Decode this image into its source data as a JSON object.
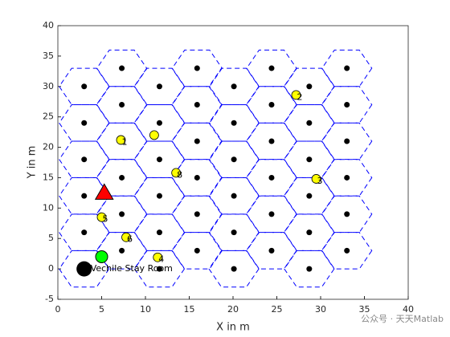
{
  "chart_data": {
    "type": "scatter",
    "xlabel": "X in m",
    "ylabel": "Y in m",
    "xlim": [
      0,
      40
    ],
    "ylim": [
      -5,
      40
    ],
    "xticks": [
      0,
      5,
      10,
      15,
      20,
      25,
      30,
      35,
      40
    ],
    "yticks": [
      -5,
      0,
      5,
      10,
      15,
      20,
      25,
      30,
      35,
      40
    ],
    "cells": {
      "x": [
        3,
        3,
        3,
        3,
        3,
        3,
        7.3,
        7.3,
        7.3,
        7.3,
        7.3,
        7.3,
        11.6,
        11.6,
        11.6,
        11.6,
        11.6,
        11.6,
        15.9,
        15.9,
        15.9,
        15.9,
        15.9,
        15.9,
        20.1,
        20.1,
        20.1,
        20.1,
        20.1,
        20.1,
        24.4,
        24.4,
        24.4,
        24.4,
        24.4,
        24.4,
        28.7,
        28.7,
        28.7,
        28.7,
        28.7,
        28.7,
        33,
        33,
        33,
        33,
        33,
        33
      ],
      "y": [
        30,
        24,
        18,
        12,
        6,
        0,
        33,
        27,
        21,
        15,
        9,
        3,
        30,
        24,
        18,
        12,
        6,
        0,
        33,
        27,
        21,
        15,
        9,
        3,
        30,
        24,
        18,
        12,
        6,
        0,
        33,
        27,
        21,
        15,
        9,
        3,
        30,
        24,
        18,
        12,
        6,
        0,
        33,
        27,
        21,
        15,
        9,
        3
      ],
      "color": "#000000",
      "edge_color": "#0000ff"
    },
    "nodes": {
      "x": [
        27.2,
        7.2,
        11,
        13.5,
        29.5,
        5,
        7.8,
        11.4
      ],
      "y": [
        28.6,
        21.2,
        22,
        15.8,
        14.8,
        8.5,
        5.2,
        1.9
      ],
      "labels": [
        "2",
        "1",
        null,
        "8",
        "3",
        "5",
        "6",
        "4"
      ],
      "color": "#ffff00"
    },
    "target": {
      "x": 5.3,
      "y": 12.5,
      "color": "#ff0000"
    },
    "start": {
      "x": 5,
      "y": 2,
      "color": "#00ff00"
    },
    "station": {
      "x": 3,
      "y": 0,
      "label": "Vechile Stay Room",
      "color": "#000000"
    }
  },
  "watermark": "公众号 · 天天Matlab"
}
